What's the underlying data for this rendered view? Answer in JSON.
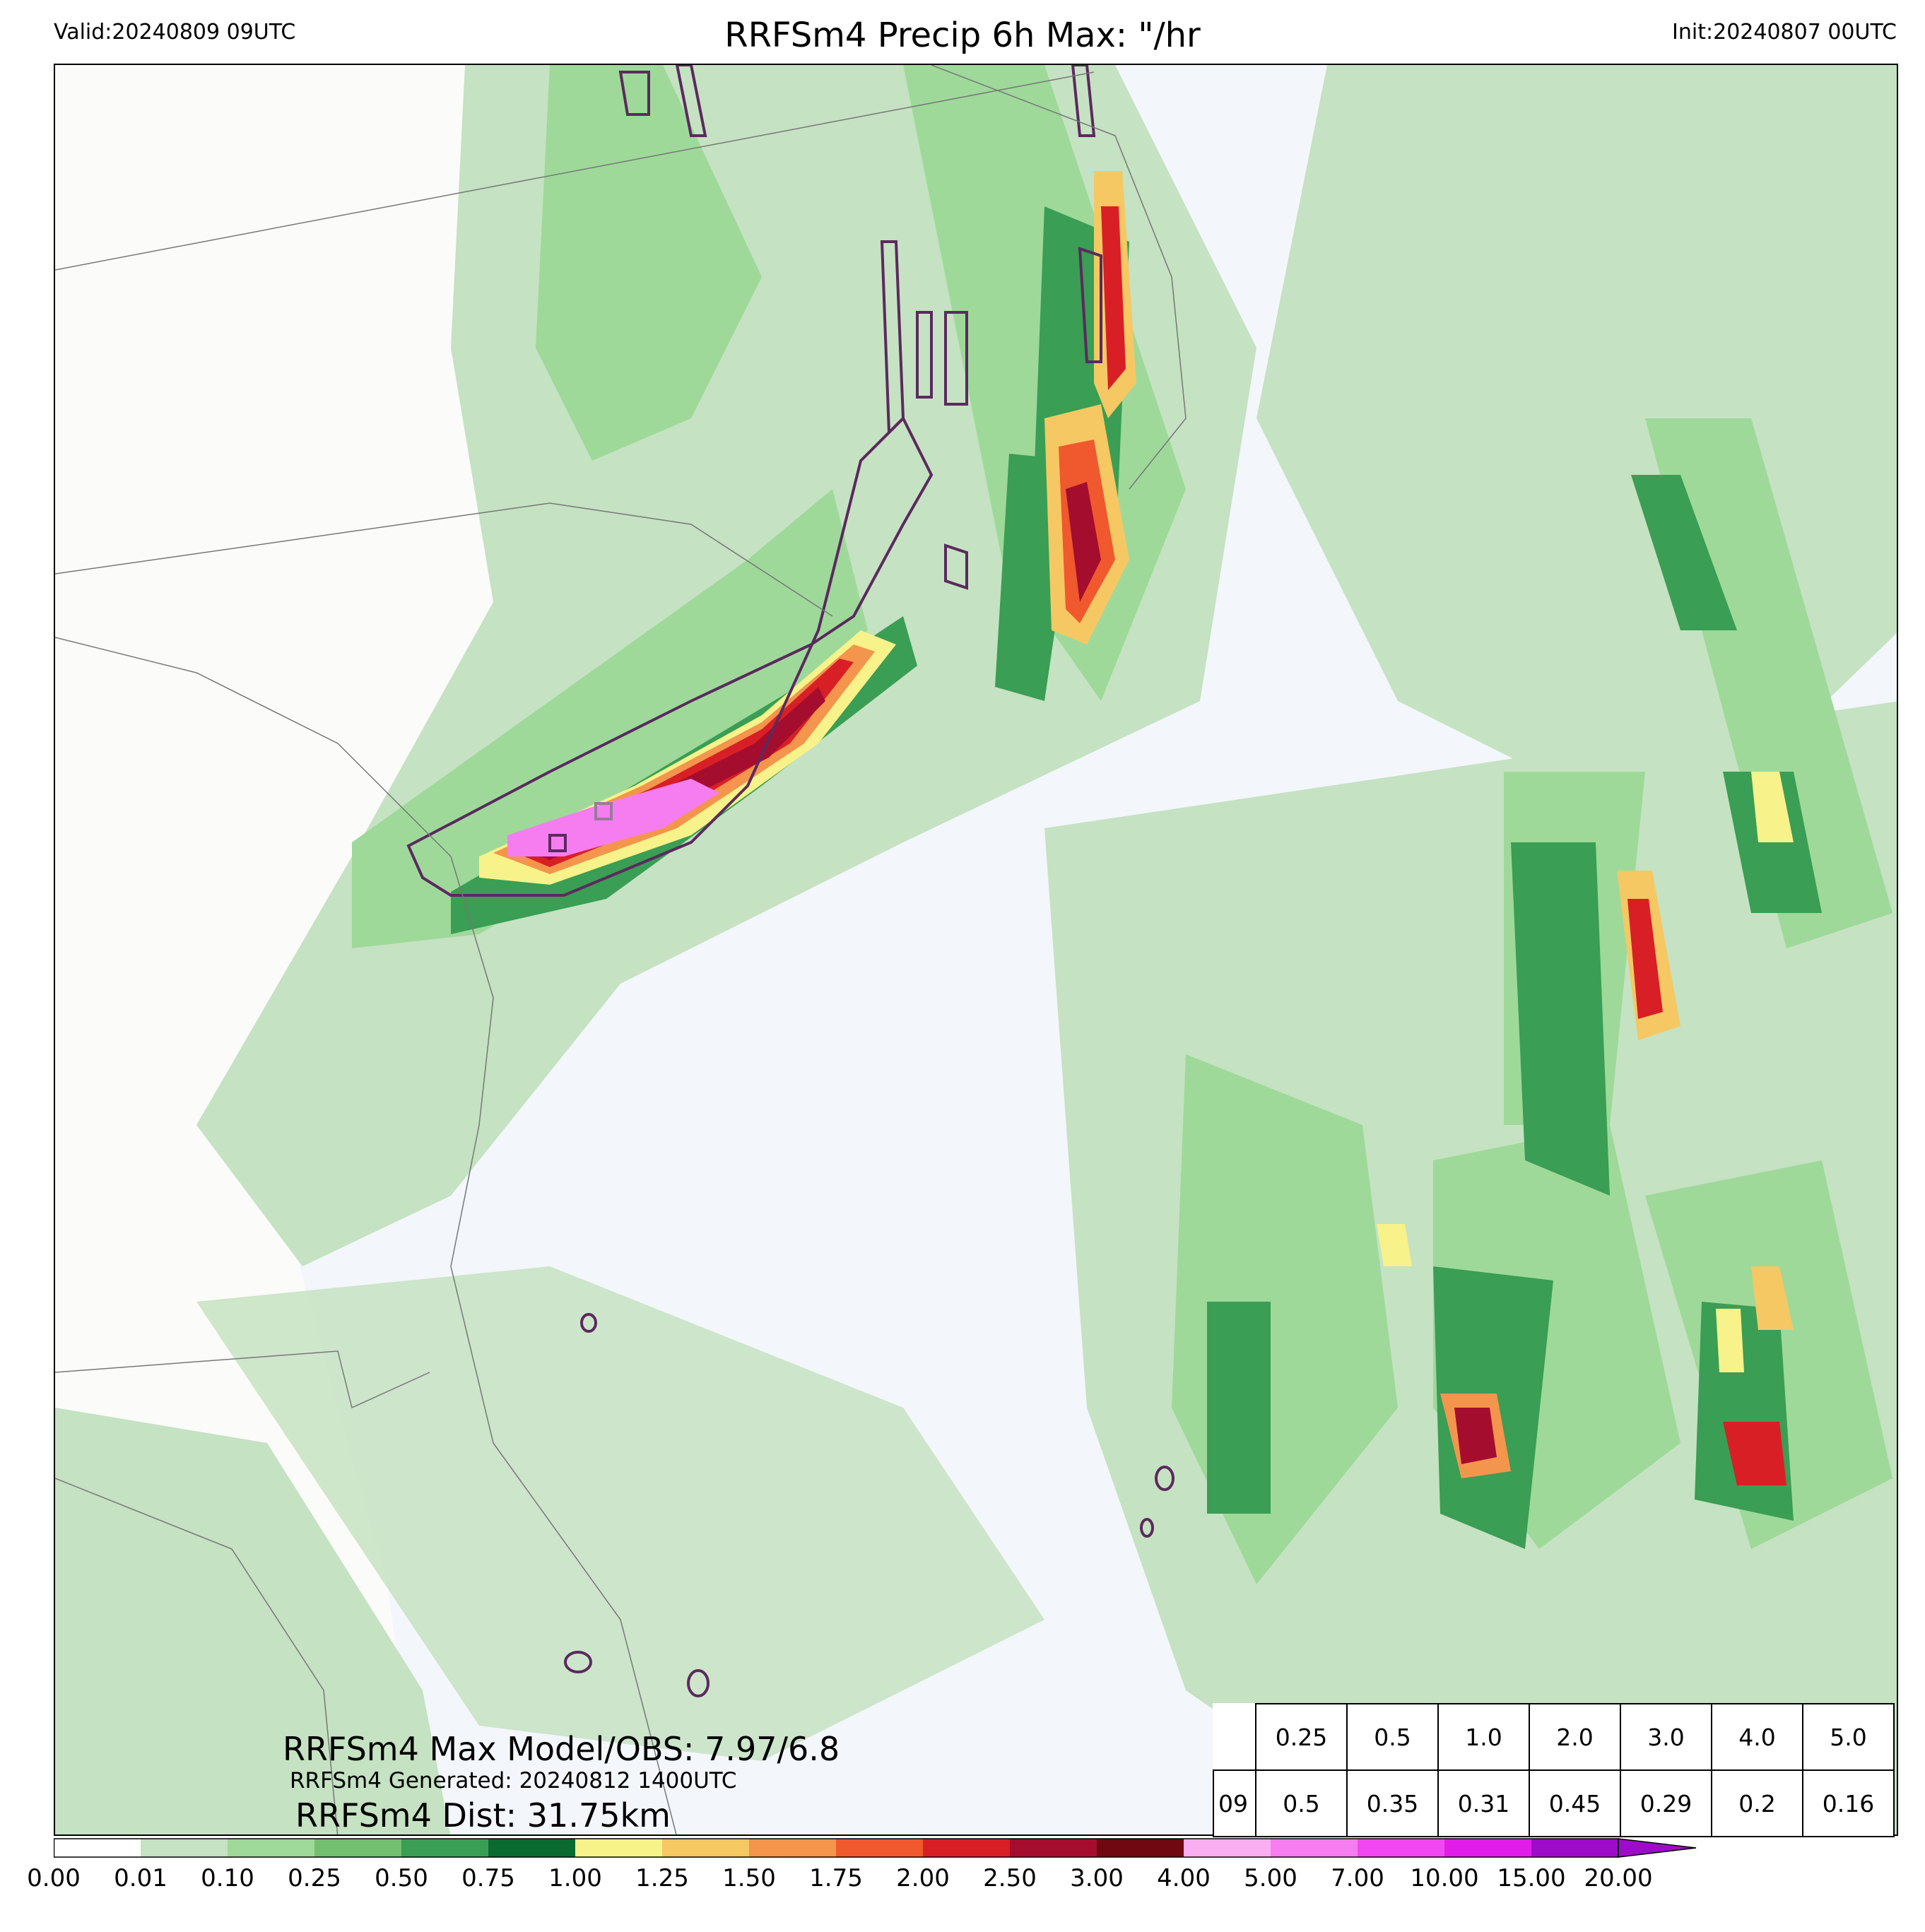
{
  "header": {
    "valid": "Valid:20240809 09UTC",
    "title": "RRFSm4 Precip 6h Max: \"/hr",
    "init": "Init:20240807 00UTC"
  },
  "annotations": {
    "max_model_obs": "RRFSm4 Max Model/OBS: 7.97/6.8",
    "generated": "RRFSm4 Generated: 20240812 1400UTC",
    "distance": "RRFSm4 Dist: 31.75km"
  },
  "stats_table": {
    "thresholds": [
      "0.25",
      "0.5",
      "1.0",
      "2.0",
      "3.0",
      "4.0",
      "5.0"
    ],
    "row_label": "09",
    "values": [
      "0.5",
      "0.35",
      "0.31",
      "0.45",
      "0.29",
      "0.2",
      "0.16"
    ]
  },
  "colorbar": {
    "ticks": [
      "0.00",
      "0.01",
      "0.10",
      "0.25",
      "0.50",
      "0.75",
      "1.00",
      "1.25",
      "1.50",
      "1.75",
      "2.00",
      "2.50",
      "3.00",
      "4.00",
      "5.00",
      "7.00",
      "10.00",
      "15.00",
      "20.00"
    ],
    "colors": [
      "#ffffff",
      "#c5e2c2",
      "#9ed99a",
      "#73bf6f",
      "#3a9e54",
      "#0b6a2f",
      "#f7f28a",
      "#f5c863",
      "#f3954c",
      "#f0582e",
      "#d81f26",
      "#a50d2e",
      "#6e0811",
      "#f8aef0",
      "#f67df0",
      "#f147f1",
      "#e11ee9",
      "#9d0cc9"
    ]
  },
  "map_colors": {
    "land": "#fbfbf9",
    "ocean": "#f3f6fb",
    "obs_contour": "#5b2a5e",
    "border": "#777777"
  }
}
